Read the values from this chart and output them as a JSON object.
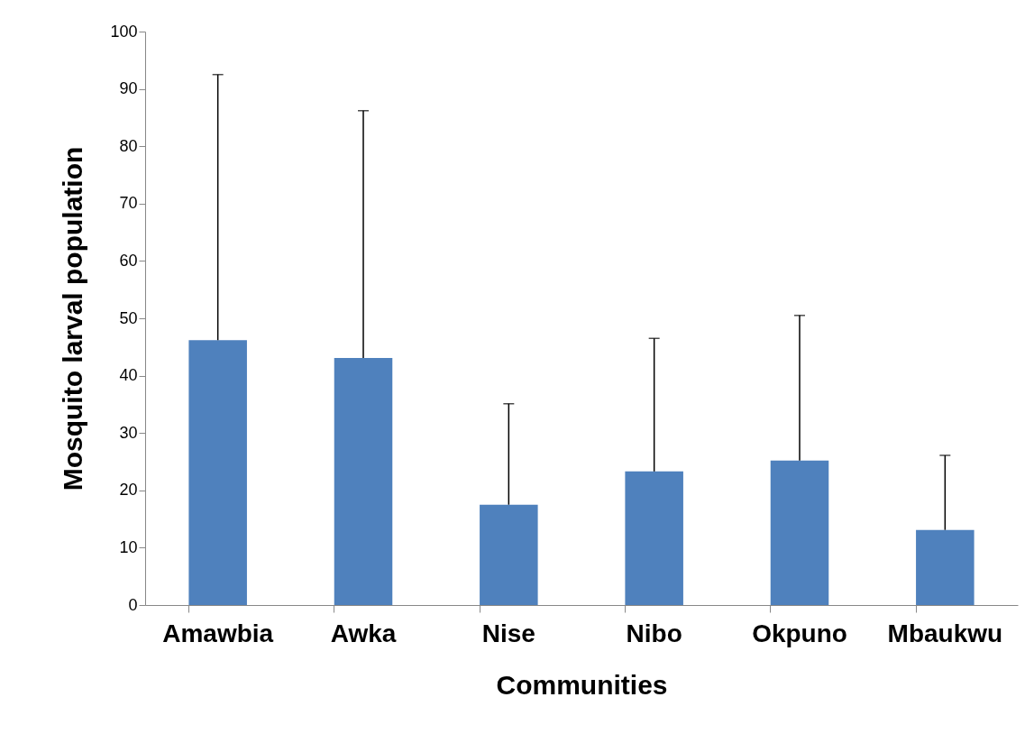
{
  "chart_data": {
    "type": "bar",
    "xlabel": "Communities",
    "ylabel": "Mosquito larval population",
    "categories": [
      "Amawbia",
      "Awka",
      "Nise",
      "Nibo",
      "Okpuno",
      "Mbaukwu"
    ],
    "values": [
      46.2,
      43.1,
      17.5,
      23.3,
      25.2,
      13.1
    ],
    "errors": [
      [
        46.2,
        92.5
      ],
      [
        43.1,
        86.2
      ],
      [
        17.5,
        35.1
      ],
      [
        23.3,
        46.5
      ],
      [
        25.2,
        50.5
      ],
      [
        13.1,
        26.1
      ]
    ],
    "color": "#4f81bd",
    "ylim": [
      0,
      100
    ],
    "yticks": [
      0,
      10,
      20,
      30,
      40,
      50,
      60,
      70,
      80,
      90,
      100
    ],
    "grid": false
  }
}
